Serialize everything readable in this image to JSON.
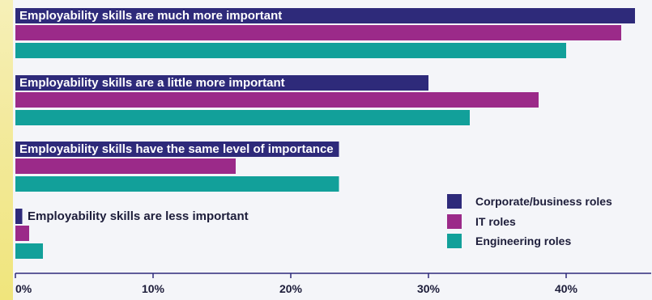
{
  "chart_data": {
    "type": "bar",
    "orientation": "horizontal",
    "categories": [
      "Employability skills are much more important",
      "Employability skills are a little more important",
      "Employability skills have the same level of importance",
      "Employability skills are less important"
    ],
    "series": [
      {
        "name": "Corporate/business roles",
        "color": "#2e2a7a",
        "values": [
          45,
          30,
          23.5,
          0.5
        ]
      },
      {
        "name": "IT roles",
        "color": "#9b2a89",
        "values": [
          44,
          38,
          16,
          1
        ]
      },
      {
        "name": "Engineering roles",
        "color": "#12a09a",
        "values": [
          40,
          33,
          23.5,
          2
        ]
      }
    ],
    "xlim": [
      0,
      45
    ],
    "x_ticks": [
      "0%",
      "10%",
      "20%",
      "30%",
      "40%"
    ],
    "x_tick_values": [
      0,
      10,
      20,
      30,
      40
    ],
    "grid": false,
    "legend_position": "bottom-right"
  }
}
